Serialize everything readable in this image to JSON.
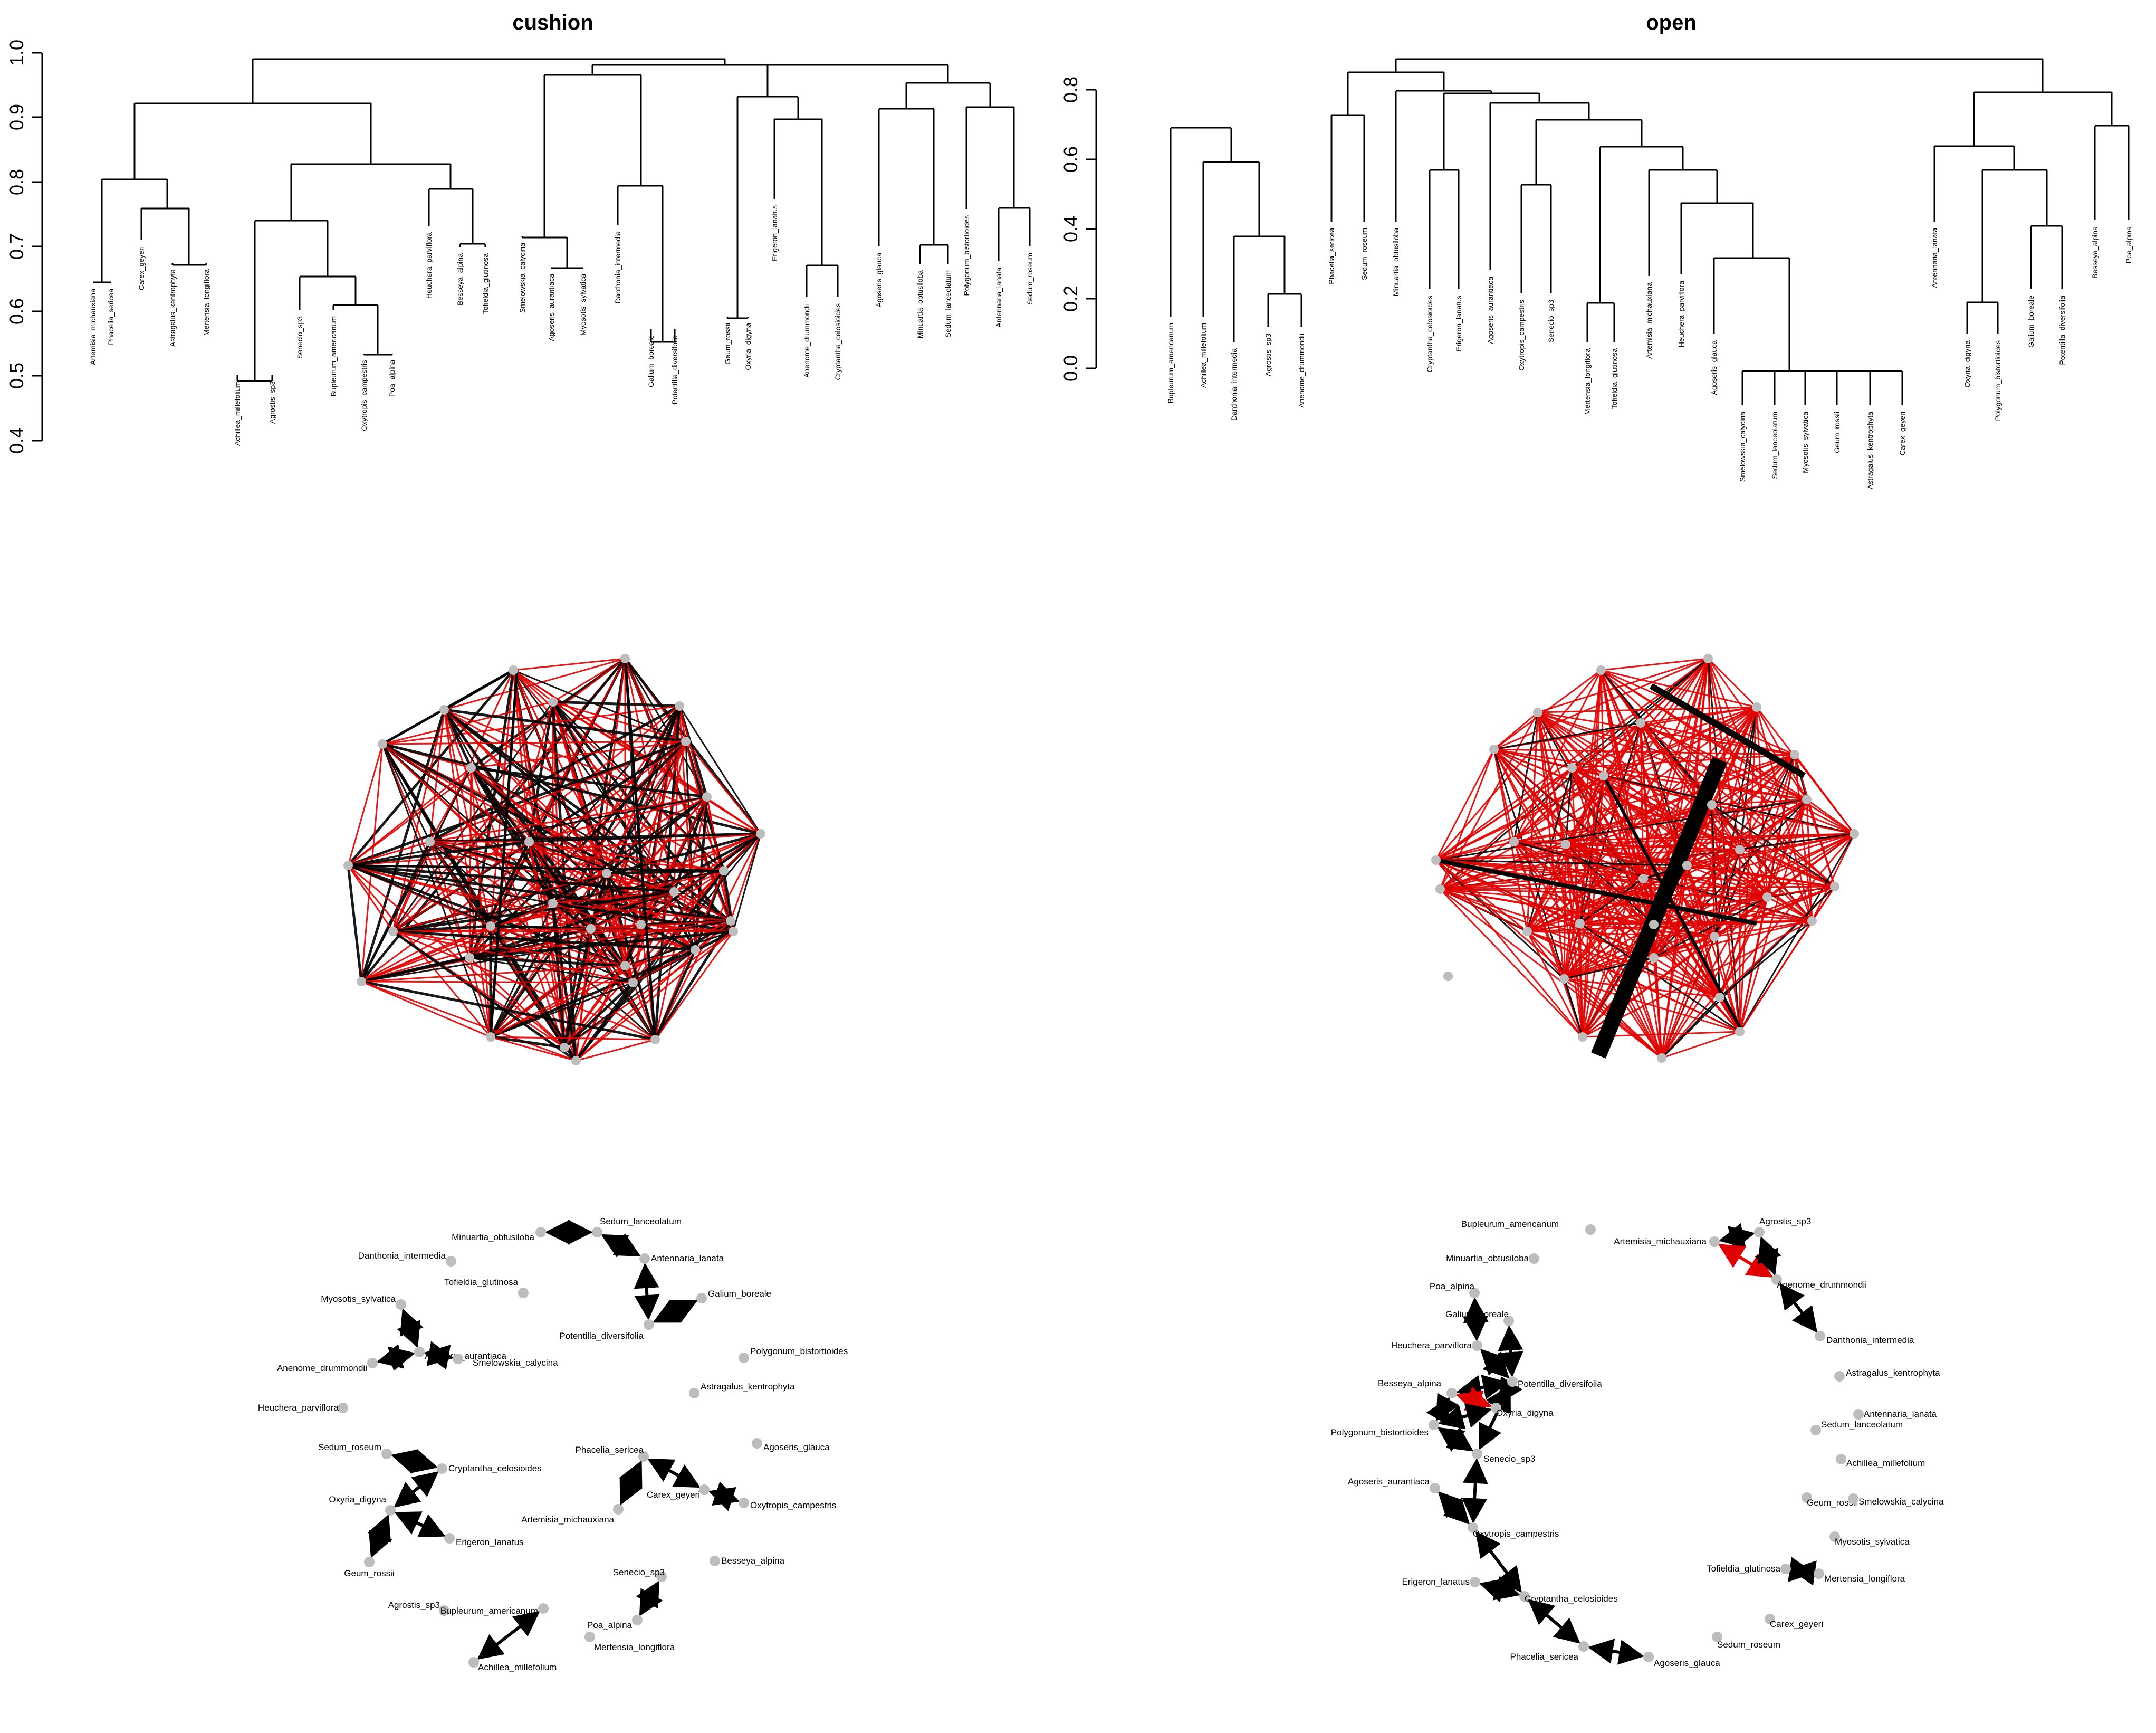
{
  "colors": {
    "positive_edge": "#000000",
    "negative_edge": "#e00000",
    "node": "#bdbdbd",
    "tree_line": "#000000"
  },
  "dendrograms": [
    {
      "title": "cushion",
      "yticks": [
        "0.4",
        "0.5",
        "0.6",
        "0.7",
        "0.8",
        "0.9",
        "1.0"
      ],
      "leaves": [
        "Artemisia_michauxiana",
        "Phacelia_sericea",
        "Carex_geyeri",
        "Astragalus_kentrophyta",
        "Mertensia_longiflora",
        "Achillea_millefolium",
        "Agrostis_sp3",
        "Senecio_sp3",
        "Bupleurum_americanum",
        "Oxytropis_campestris",
        "Poa_alpina",
        "Heuchera_parviflora",
        "Besseya_alpina",
        "Tofieldia_glutinosa",
        "Smelowskia_calycina",
        "Agoseris_aurantiaca",
        "Myosotis_sylvatica",
        "Danthonia_intermedia",
        "Galium_boreale",
        "Potentilla_diversifolia",
        "Geum_rossii",
        "Oxyria_digyna",
        "Erigeron_lanatus",
        "Anenome_drummondii",
        "Cryptantha_celosioides",
        "Agoseris_glauca",
        "Minuartia_obtusiloba",
        "Sedum_lanceolatum",
        "Polygonum_bistortioides",
        "Antennaria_lanata",
        "Sedum_roseum"
      ]
    },
    {
      "title": "open",
      "yticks": [
        "0.0",
        "0.2",
        "0.4",
        "0.6",
        "0.8"
      ],
      "leaves": [
        "Bupleurum_americanum",
        "Achillea_millefolium",
        "Danthonia_intermedia",
        "Agrostis_sp3",
        "Anenome_drummondii",
        "Phacelia_sericea",
        "Sedum_roseum",
        "Minuartia_obtusiloba",
        "Cryptantha_celosioides",
        "Erigeron_lanatus",
        "Agoseris_aurantiaca",
        "Oxytropis_campestris",
        "Senecio_sp3",
        "Mertensia_longiflora",
        "Tofieldia_glutinosa",
        "Artemisia_michauxiana",
        "Heuchera_parviflora",
        "Agoseris_glauca",
        "Smelowskia_calycina",
        "Sedum_lanceolatum",
        "Myosotis_sylvatica",
        "Geum_rossii",
        "Astragalus_kentrophyta",
        "Carex_geyeri",
        "Antennaria_lanata",
        "Oxyria_digyna",
        "Polygonum_bistortioides",
        "Galium_boreale",
        "Potentilla_diversifolia",
        "Besseya_alpina",
        "Poa_alpina"
      ]
    }
  ],
  "networks_bottom": [
    {
      "nodes": [
        "Sedum_lanceolatum",
        "Minuartia_obtusiloba",
        "Danthonia_intermedia",
        "Antennaria_lanata",
        "Tofieldia_glutinosa",
        "Galium_boreale",
        "Myosotis_sylvatica",
        "Potentilla_diversifolia",
        "Polygonum_bistortioides",
        "Anenome_drummondii",
        "Agoseris_aurantiaca",
        "Smelowskia_calycina",
        "Astragalus_kentrophyta",
        "Heuchera_parviflora",
        "Agoseris_glauca",
        "Sedum_roseum",
        "Cryptantha_celosioides",
        "Phacelia_sericea",
        "Oxyria_digyna",
        "Carex_geyeri",
        "Oxytropis_campestris",
        "Artemisia_michauxiana",
        "Erigeron_lanatus",
        "Geum_rossii",
        "Besseya_alpina",
        "Senecio_sp3",
        "Agrostis_sp3",
        "Bupleurum_americanum",
        "Poa_alpina",
        "Mertensia_longiflora",
        "Achillea_millefolium"
      ],
      "edges": [
        [
          "Minuartia_obtusiloba",
          "Sedum_lanceolatum",
          "positive"
        ],
        [
          "Sedum_lanceolatum",
          "Antennaria_lanata",
          "positive"
        ],
        [
          "Antennaria_lanata",
          "Potentilla_diversifolia",
          "positive"
        ],
        [
          "Potentilla_diversifolia",
          "Galium_boreale",
          "positive"
        ],
        [
          "Myosotis_sylvatica",
          "Agoseris_aurantiaca",
          "positive"
        ],
        [
          "Anenome_drummondii",
          "Agoseris_aurantiaca",
          "positive"
        ],
        [
          "Agoseris_aurantiaca",
          "Smelowskia_calycina",
          "positive"
        ],
        [
          "Sedum_roseum",
          "Cryptantha_celosioides",
          "positive"
        ],
        [
          "Cryptantha_celosioides",
          "Oxyria_digyna",
          "positive"
        ],
        [
          "Oxyria_digyna",
          "Erigeron_lanatus",
          "positive"
        ],
        [
          "Oxyria_digyna",
          "Geum_rossii",
          "positive"
        ],
        [
          "Phacelia_sericea",
          "Carex_geyeri",
          "positive"
        ],
        [
          "Phacelia_sericea",
          "Artemisia_michauxiana",
          "positive"
        ],
        [
          "Carex_geyeri",
          "Oxytropis_campestris",
          "positive"
        ],
        [
          "Senecio_sp3",
          "Poa_alpina",
          "positive"
        ],
        [
          "Bupleurum_americanum",
          "Achillea_millefolium",
          "positive"
        ]
      ]
    },
    {
      "nodes": [
        "Bupleurum_americanum",
        "Agrostis_sp3",
        "Artemisia_michauxiana",
        "Minuartia_obtusiloba",
        "Anenome_drummondii",
        "Poa_alpina",
        "Galium_boreale",
        "Danthonia_intermedia",
        "Heuchera_parviflora",
        "Astragalus_kentrophyta",
        "Besseya_alpina",
        "Potentilla_diversifolia",
        "Oxyria_digyna",
        "Antennaria_lanata",
        "Sedum_lanceolatum",
        "Polygonum_bistortioides",
        "Senecio_sp3",
        "Achillea_millefolium",
        "Agoseris_aurantiaca",
        "Geum_rossii",
        "Smelowskia_calycina",
        "Oxytropis_campestris",
        "Myosotis_sylvatica",
        "Tofieldia_glutinosa",
        "Mertensia_longiflora",
        "Erigeron_lanatus",
        "Cryptantha_celosioides",
        "Carex_geyeri",
        "Sedum_roseum",
        "Phacelia_sericea",
        "Agoseris_glauca"
      ],
      "edges": [
        [
          "Artemisia_michauxiana",
          "Agrostis_sp3",
          "positive"
        ],
        [
          "Artemisia_michauxiana",
          "Anenome_drummondii",
          "negative"
        ],
        [
          "Agrostis_sp3",
          "Anenome_drummondii",
          "positive"
        ],
        [
          "Anenome_drummondii",
          "Danthonia_intermedia",
          "positive"
        ],
        [
          "Poa_alpina",
          "Heuchera_parviflora",
          "positive"
        ],
        [
          "Galium_boreale",
          "Potentilla_diversifolia",
          "positive"
        ],
        [
          "Heuchera_parviflora",
          "Potentilla_diversifolia",
          "positive"
        ],
        [
          "Potentilla_diversifolia",
          "Besseya_alpina",
          "positive"
        ],
        [
          "Potentilla_diversifolia",
          "Oxyria_digyna",
          "positive"
        ],
        [
          "Potentilla_diversifolia",
          "Senecio_sp3",
          "positive"
        ],
        [
          "Besseya_alpina",
          "Oxyria_digyna",
          "negative"
        ],
        [
          "Besseya_alpina",
          "Polygonum_bistortioides",
          "positive"
        ],
        [
          "Oxyria_digyna",
          "Polygonum_bistortioides",
          "positive"
        ],
        [
          "Polygonum_bistortioides",
          "Senecio_sp3",
          "positive"
        ],
        [
          "Senecio_sp3",
          "Oxytropis_campestris",
          "positive"
        ],
        [
          "Agoseris_aurantiaca",
          "Oxytropis_campestris",
          "positive"
        ],
        [
          "Oxytropis_campestris",
          "Cryptantha_celosioides",
          "positive"
        ],
        [
          "Erigeron_lanatus",
          "Cryptantha_celosioides",
          "positive"
        ],
        [
          "Cryptantha_celosioides",
          "Phacelia_sericea",
          "positive"
        ],
        [
          "Phacelia_sericea",
          "Agoseris_glauca",
          "positive"
        ],
        [
          "Tofieldia_glutinosa",
          "Mertensia_longiflora",
          "positive"
        ]
      ]
    }
  ]
}
